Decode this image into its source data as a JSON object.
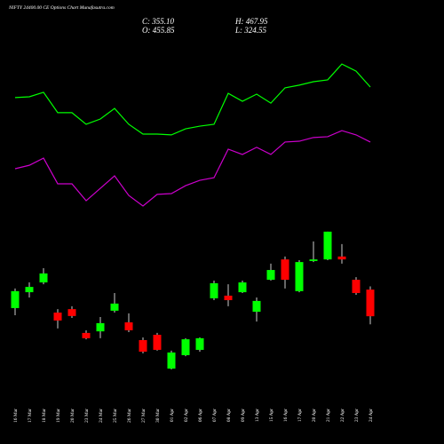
{
  "chart_data": {
    "type": "candlestick",
    "title": "NIFTY 24400.00 CE Options Chart Munafasutra.com",
    "info": [
      "C: 355.10",
      "H: 467.95",
      "O: 455.85",
      "L: 324.55"
    ],
    "categories": [
      "16 Mar",
      "17 Mar",
      "18 Mar",
      "19 Mar",
      "20 Mar",
      "23 Mar",
      "24 Mar",
      "25 Mar",
      "26 Mar",
      "27 Mar",
      "30 Mar",
      "01 Apr",
      "02 Apr",
      "06 Apr",
      "07 Apr",
      "08 Apr",
      "09 Apr",
      "13 Apr",
      "15 Apr",
      "16 Apr",
      "17 Apr",
      "20 Apr",
      "21 Apr",
      "22 Apr",
      "23 Apr",
      "24 Apr"
    ],
    "open": [
      386,
      446,
      483,
      369,
      382,
      292,
      298,
      376,
      332,
      265,
      285,
      157,
      208,
      228,
      423,
      433,
      446,
      372,
      493,
      570,
      450,
      564,
      570,
      581,
      493,
      455.85
    ],
    "high": [
      460,
      483,
      537,
      382,
      393,
      302,
      352,
      443,
      366,
      275,
      292,
      225,
      272,
      275,
      490,
      476,
      490,
      426,
      554,
      581,
      567,
      638,
      675,
      628,
      503,
      467.95
    ],
    "low": [
      359,
      426,
      476,
      309,
      349,
      268,
      272,
      369,
      295,
      215,
      225,
      154,
      204,
      221,
      416,
      393,
      443,
      335,
      490,
      460,
      446,
      560,
      567,
      554,
      436,
      324.55
    ],
    "close": [
      450,
      466,
      517,
      339,
      356,
      272,
      329,
      403,
      302,
      221,
      228,
      218,
      268,
      272,
      480,
      416,
      483,
      413,
      530,
      493,
      560,
      570,
      675,
      570,
      443,
      355.1
    ],
    "up_color": "#00ff00",
    "down_color": "#ff0000",
    "series": [
      {
        "color": "#00ff00",
        "values": [
          1182,
          1185,
          1202,
          1125,
          1125,
          1081,
          1101,
          1141,
          1081,
          1044,
          1044,
          1041,
          1064,
          1074,
          1081,
          1198,
          1168,
          1195,
          1161,
          1219,
          1229,
          1242,
          1249,
          1309,
          1282,
          1222
        ]
      },
      {
        "color": "#cc00cc",
        "values": [
          913,
          926,
          953,
          856,
          856,
          792,
          839,
          886,
          812,
          772,
          816,
          819,
          849,
          869,
          879,
          987,
          967,
          994,
          967,
          1014,
          1017,
          1031,
          1034,
          1057,
          1041,
          1014
        ]
      }
    ],
    "ylim": [
      -128,
      1551
    ]
  }
}
